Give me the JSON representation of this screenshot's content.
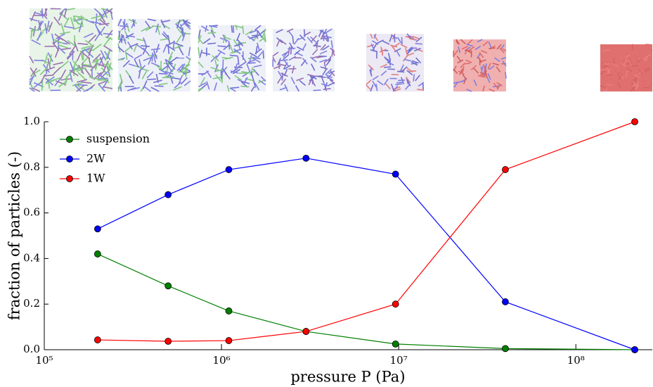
{
  "chart_data": {
    "type": "line",
    "x_label": "pressure P (Pa)",
    "y_label": "fraction of particles (-)",
    "x_log": true,
    "legend": "upper left",
    "x": [
      200000,
      500000,
      1100000,
      3000000,
      9600000,
      40000000,
      215000000
    ],
    "series": [
      {
        "name": "suspension",
        "color": "#008000",
        "values": [
          0.42,
          0.28,
          0.17,
          0.08,
          0.025,
          0.005,
          0.0
        ]
      },
      {
        "name": "2W",
        "color": "#0000ff",
        "values": [
          0.53,
          0.68,
          0.79,
          0.84,
          0.77,
          0.21,
          0.0
        ]
      },
      {
        "name": "1W",
        "color": "#ff0000",
        "values": [
          0.043,
          0.037,
          0.04,
          0.08,
          0.2,
          0.79,
          1.0
        ]
      }
    ],
    "xlim": [
      100000,
      270000000
    ],
    "xticks": [
      {
        "value": 100000,
        "label": "10⁵"
      },
      {
        "value": 1000000,
        "label": "10⁶"
      },
      {
        "value": 10000000,
        "label": "10⁷"
      },
      {
        "value": 100000000,
        "label": "10⁸"
      }
    ],
    "ylim": [
      0,
      1
    ],
    "yticks": [
      {
        "value": 0,
        "label": "0.0"
      },
      {
        "value": 0.2,
        "label": "0.2"
      },
      {
        "value": 0.4,
        "label": "0.4"
      },
      {
        "value": 0.6,
        "label": "0.6"
      },
      {
        "value": 0.8,
        "label": "0.8"
      },
      {
        "value": 1,
        "label": "1.0"
      }
    ]
  }
}
